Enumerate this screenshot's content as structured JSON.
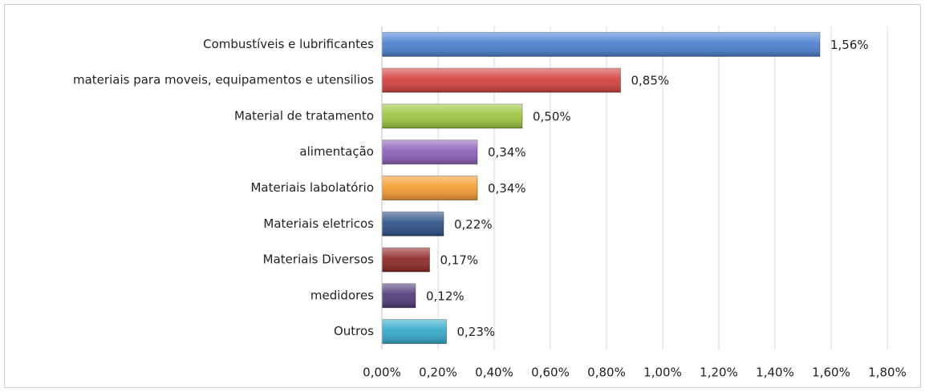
{
  "chart_data": {
    "type": "bar",
    "orientation": "horizontal",
    "categories": [
      "Combustíveis e lubrificantes",
      "materiais para moveis, equipamentos e utensilios",
      "Material de tratamento",
      "alimentação",
      "Materiais labolatório",
      "Materiais eletricos",
      "Materiais Diversos",
      "medidores",
      "Outros"
    ],
    "values": [
      1.56,
      0.85,
      0.5,
      0.34,
      0.34,
      0.22,
      0.17,
      0.12,
      0.23
    ],
    "value_labels": [
      "1,56%",
      "0,85%",
      "0,50%",
      "0,34%",
      "0,34%",
      "0,22%",
      "0,17%",
      "0,12%",
      "0,23%"
    ],
    "colors": [
      "#4a7fd0",
      "#d43f3f",
      "#9bc53d",
      "#8c5fb8",
      "#f59a2e",
      "#2b5087",
      "#8e2626",
      "#4f3a7a",
      "#31a8c9"
    ],
    "xlim": [
      0,
      1.8
    ],
    "xticks": [
      {
        "value": 0,
        "label": "0,00%"
      },
      {
        "value": 0.2,
        "label": "0,20%"
      },
      {
        "value": 0.4,
        "label": "0,40%"
      },
      {
        "value": 0.6,
        "label": "0,60%"
      },
      {
        "value": 0.8,
        "label": "0,80%"
      },
      {
        "value": 1.0,
        "label": "1,00%"
      },
      {
        "value": 1.2,
        "label": "1,20%"
      },
      {
        "value": 1.4,
        "label": "1,40%"
      },
      {
        "value": 1.6,
        "label": "1,60%"
      },
      {
        "value": 1.8,
        "label": "1,80%"
      }
    ],
    "grid": true
  }
}
